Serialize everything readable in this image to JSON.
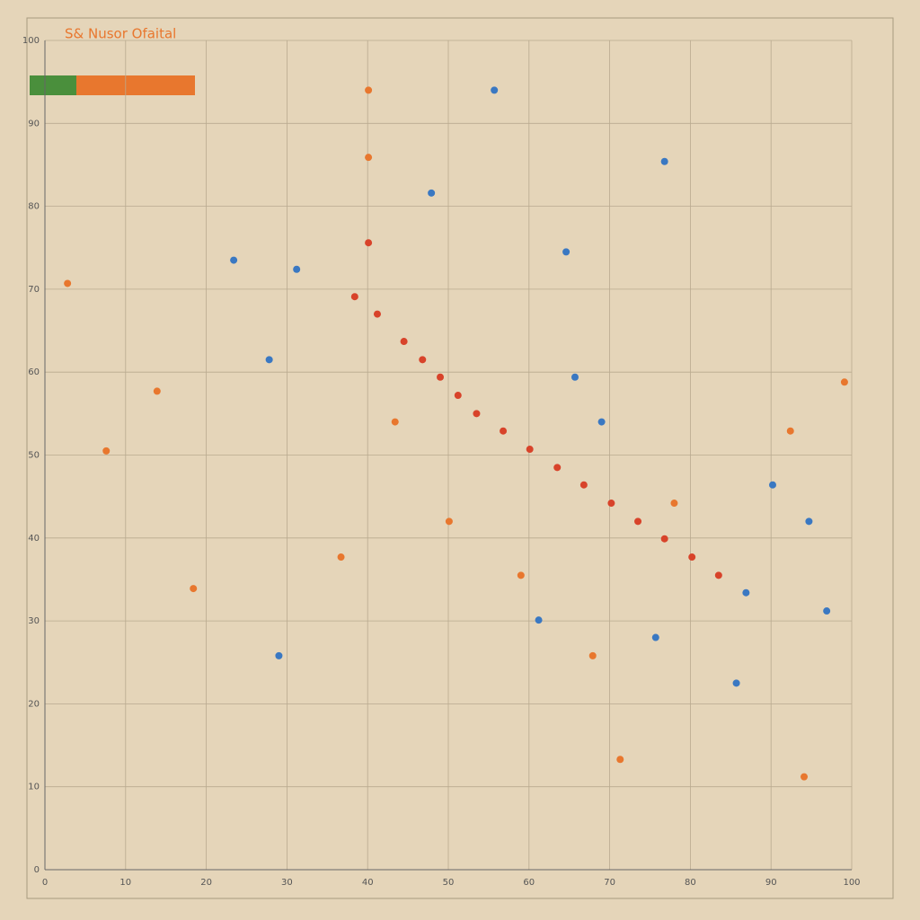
{
  "chart_data": {
    "type": "scatter",
    "title": "S& Nusor Ofaital",
    "xlim": [
      0,
      100
    ],
    "ylim": [
      0,
      100
    ],
    "xticks": [
      0,
      10,
      20,
      30,
      40,
      50,
      60,
      70,
      80,
      90,
      100
    ],
    "yticks": [
      0,
      10,
      20,
      30,
      40,
      50,
      60,
      70,
      80,
      90,
      100
    ],
    "grid": true,
    "series": [
      {
        "color": "#d8432a",
        "x": [
          40.1,
          38.4,
          41.2,
          44.5,
          46.8,
          49.0,
          51.2,
          53.5,
          56.8,
          60.1,
          63.5,
          66.8,
          70.2,
          73.5,
          76.8,
          80.2,
          83.5
        ],
        "values": [
          75.6,
          69.1,
          67.0,
          63.7,
          61.5,
          59.4,
          57.2,
          55.0,
          52.9,
          50.7,
          48.5,
          46.4,
          44.2,
          42.0,
          39.9,
          37.7,
          35.5
        ]
      },
      {
        "color": "#3a78c2",
        "x": [
          86.9,
          61.2,
          75.7,
          85.7,
          27.8,
          23.4,
          31.2,
          47.9,
          55.7,
          76.8,
          64.6,
          65.7,
          69.0,
          90.2,
          94.7,
          96.9,
          29.0
        ],
        "values": [
          33.4,
          30.1,
          28.0,
          22.5,
          61.5,
          73.5,
          72.4,
          81.6,
          94.0,
          85.4,
          74.5,
          59.4,
          54.0,
          46.4,
          42.0,
          31.2,
          25.8
        ]
      },
      {
        "color": "#e8772e",
        "x": [
          18.4,
          2.8,
          40.1,
          40.1,
          7.6,
          13.9,
          92.4,
          99.1,
          71.3,
          94.1,
          50.1,
          36.7,
          59.0,
          67.9,
          78.0,
          43.4
        ],
        "values": [
          33.9,
          70.7,
          85.9,
          94.0,
          50.5,
          57.7,
          52.9,
          58.8,
          13.3,
          11.2,
          42.0,
          37.7,
          35.5,
          25.8,
          44.2,
          54.0
        ]
      }
    ]
  }
}
